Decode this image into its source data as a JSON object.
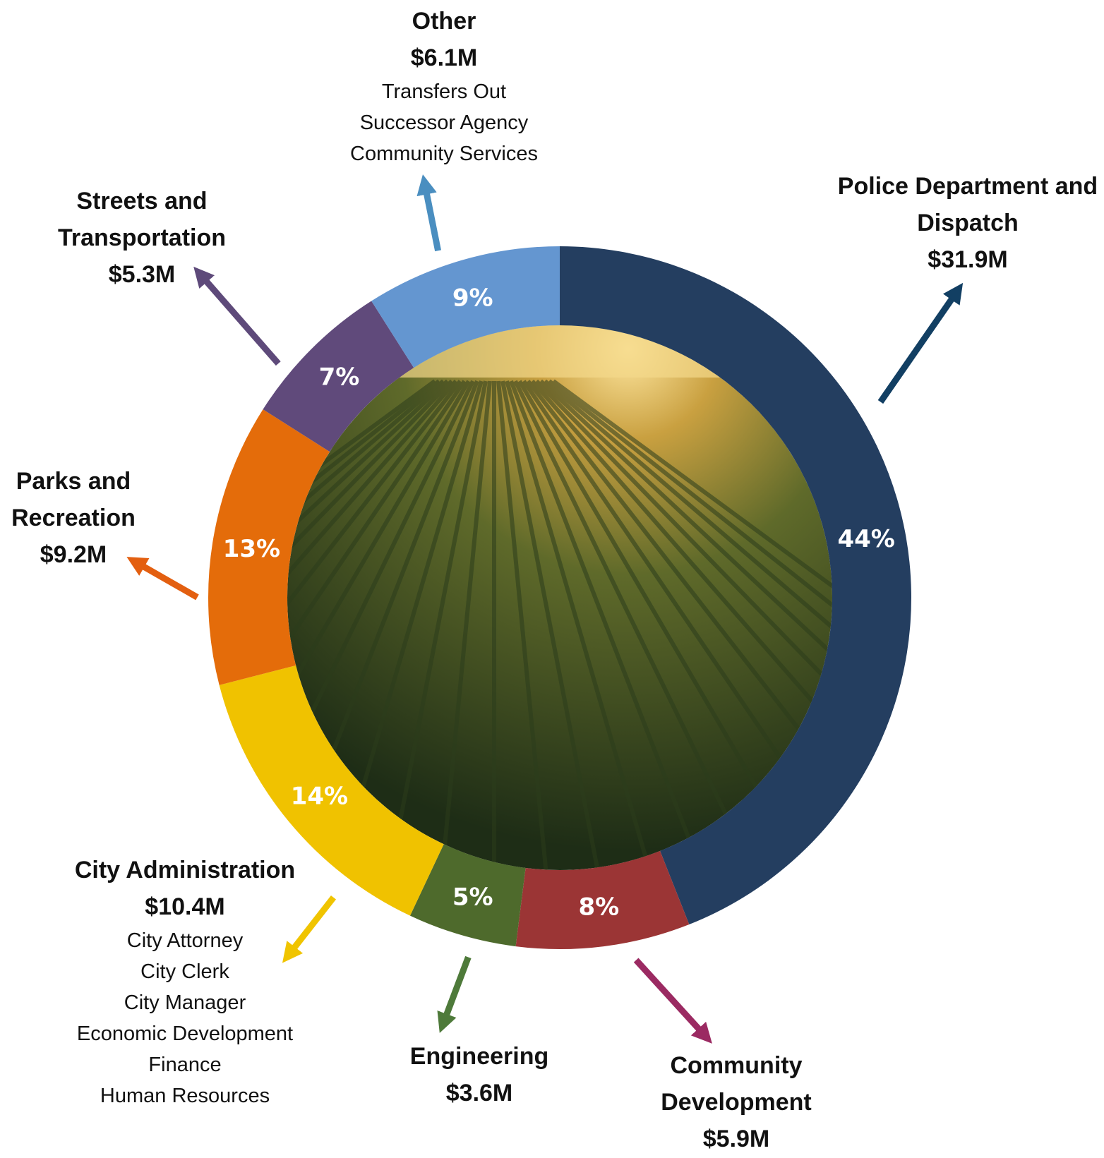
{
  "chart_data": {
    "type": "donut",
    "categories": [
      "Police Department and Dispatch",
      "Community Development",
      "Engineering",
      "City Administration",
      "Parks and Recreation",
      "Streets and Transportation",
      "Other"
    ],
    "values": [
      44,
      8,
      5,
      14,
      13,
      7,
      9
    ],
    "value_labels": [
      "44%",
      "8%",
      "5%",
      "14%",
      "13%",
      "7%",
      "9%"
    ],
    "amount_labels": [
      "$31.9M",
      "$5.9M",
      "$3.6M",
      "$10.4M",
      "$9.2M",
      "$5.3M",
      "$6.1M"
    ],
    "details": [
      [],
      [],
      [],
      [
        "City Attorney",
        "City Clerk",
        "City Manager",
        "Economic Development",
        "Finance",
        "Human Resources"
      ],
      [],
      [],
      [
        "Transfers Out",
        "Successor Agency",
        "Community Services"
      ]
    ],
    "colors": [
      "#243e60",
      "#9b3535",
      "#4e6a2c",
      "#f0c200",
      "#e46c0a",
      "#604a7b",
      "#6496d0"
    ],
    "arrow_colors": [
      "#123f63",
      "#9b2a62",
      "#4e7a3a",
      "#f0c400",
      "#e35f10",
      "#5e4a7a",
      "#4a8ec0"
    ]
  }
}
